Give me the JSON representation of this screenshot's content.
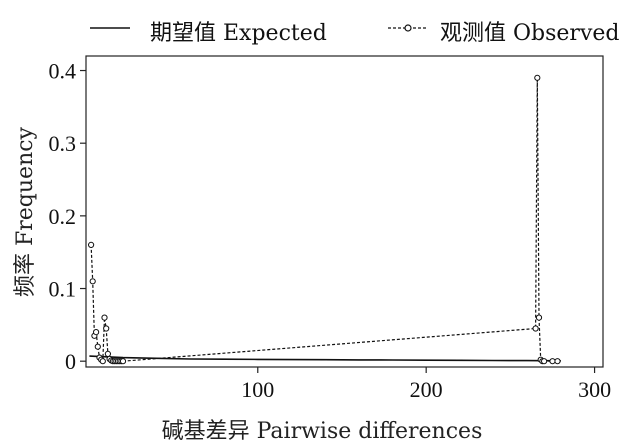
{
  "chart_data": {
    "type": "line",
    "xlabel": "碱基差异 Pairwise differences",
    "ylabel": "频率 Frequency",
    "xlim": [
      -2,
      305
    ],
    "ylim": [
      -0.008,
      0.42
    ],
    "x_ticks": [
      100,
      200,
      300
    ],
    "x_tick_labels": [
      "100",
      "200",
      "300"
    ],
    "y_ticks": [
      0,
      0.1,
      0.2,
      0.3,
      0.4
    ],
    "y_tick_labels": [
      "0",
      "0.1",
      "0.2",
      "0.3",
      "0.4"
    ],
    "legend": {
      "placement": "top",
      "entries": [
        "期望值 Expected",
        "观测值 Observed"
      ]
    },
    "series": [
      {
        "name": "期望值 Expected",
        "style": "solid",
        "x": [
          0,
          10,
          20,
          40,
          60,
          80,
          100,
          120,
          140,
          160,
          180,
          200,
          220,
          240,
          260,
          270,
          280
        ],
        "y": [
          0.007,
          0.006,
          0.005,
          0.004,
          0.003,
          0.0028,
          0.0025,
          0.0022,
          0.002,
          0.0018,
          0.0016,
          0.0014,
          0.0012,
          0.001,
          0.0008,
          0.0007,
          0.0006
        ]
      },
      {
        "name": "观测值 Observed",
        "style": "dashed",
        "marker": "open-circle",
        "x": [
          1,
          2,
          3,
          4,
          5,
          6,
          7,
          8,
          9,
          10,
          11,
          12,
          13,
          14,
          15,
          16,
          17,
          18,
          19,
          20,
          265,
          266,
          267,
          268,
          269,
          270,
          275,
          278
        ],
        "y": [
          0.16,
          0.11,
          0.035,
          0.04,
          0.02,
          0.005,
          0.002,
          0.0,
          0.06,
          0.045,
          0.01,
          0.003,
          0.001,
          0.0,
          0.0,
          0.0,
          0.0,
          0.0,
          0.0,
          0.0,
          0.045,
          0.39,
          0.06,
          0.002,
          0.0,
          0.0,
          0.0,
          0.0
        ]
      }
    ],
    "grid": false,
    "colors": {
      "line": "#111111",
      "frame": "#222222"
    }
  }
}
